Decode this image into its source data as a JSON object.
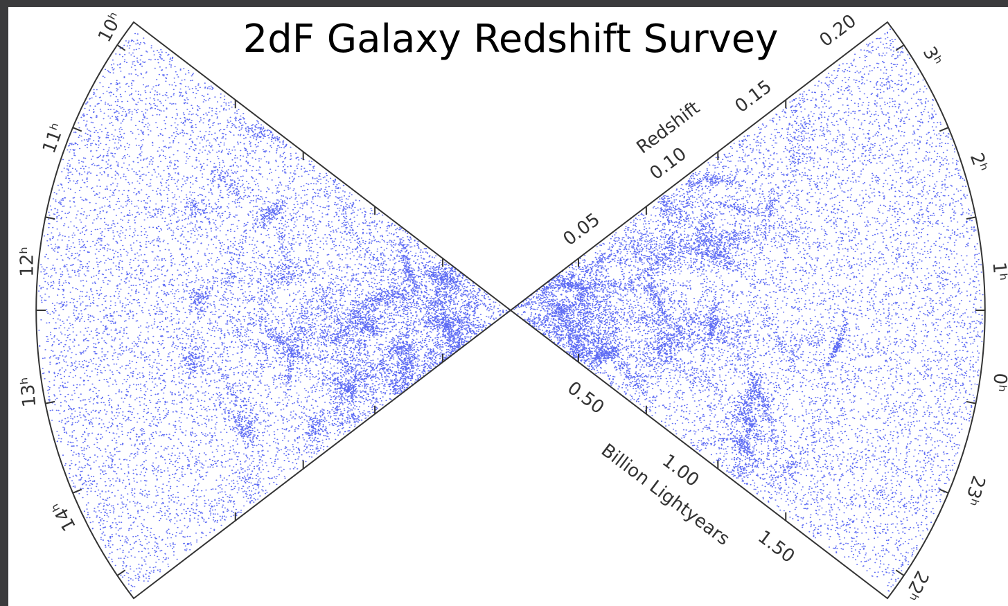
{
  "title": "2dF Galaxy Redshift Survey",
  "left_hours": [
    "10ʰ",
    "11ʰ",
    "12ʰ",
    "13ʰ",
    "14ʰ"
  ],
  "right_hours": [
    "3ʰ",
    "2ʰ",
    "1ʰ",
    "0ʰ",
    "23ʰ",
    "22ʰ"
  ],
  "redshift_axis": {
    "label": "Redshift",
    "ticks": [
      "0.05",
      "0.10",
      "0.15",
      "0.20"
    ]
  },
  "distance_axis": {
    "label": "Billion Lightyears",
    "ticks": [
      "0.50",
      "1.00",
      "1.50"
    ]
  }
}
